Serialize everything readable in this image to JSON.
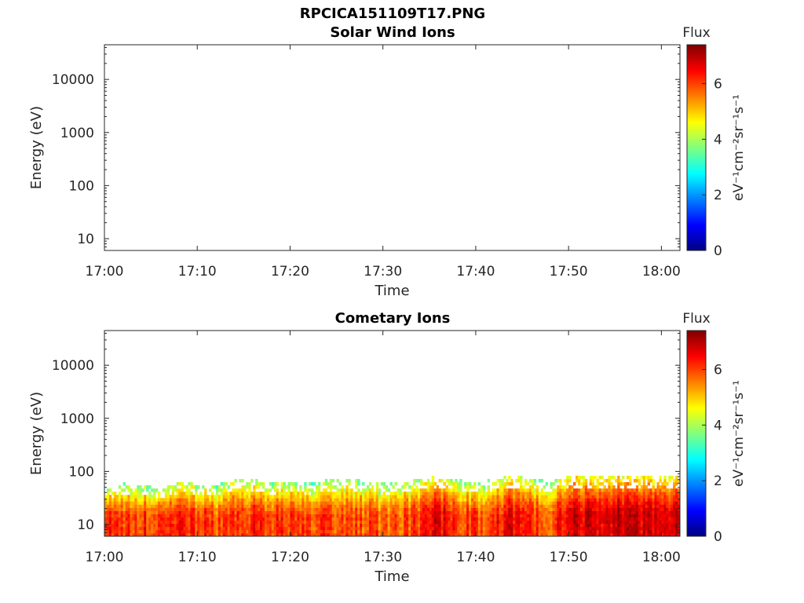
{
  "figure": {
    "title": "RPCICA151109T17.PNG"
  },
  "colorbar": {
    "label": "Flux",
    "unit_text": "eV⁻¹cm⁻²sr⁻¹s⁻¹",
    "ticks": [
      "0",
      "2",
      "4",
      "6"
    ],
    "range": [
      0,
      7.4
    ],
    "colormap": "jet"
  },
  "chart_data": [
    {
      "type": "heatmap",
      "title": "Solar Wind Ions",
      "xlabel": "Time",
      "ylabel": "Energy (eV)",
      "y_scale": "log",
      "y_ticks": [
        "10",
        "100",
        "1000",
        "10000"
      ],
      "x_ticks": [
        "17:00",
        "17:10",
        "17:20",
        "17:30",
        "17:40",
        "17:50",
        "18:00"
      ],
      "x_range": [
        "17:00",
        "18:02"
      ],
      "y_range": [
        6,
        45000
      ],
      "data_present": false
    },
    {
      "type": "heatmap",
      "title": "Cometary Ions",
      "xlabel": "Time",
      "ylabel": "Energy (eV)",
      "y_scale": "log",
      "y_ticks": [
        "10",
        "100",
        "1000",
        "10000"
      ],
      "x_ticks": [
        "17:00",
        "17:10",
        "17:20",
        "17:30",
        "17:40",
        "17:50",
        "18:00"
      ],
      "x_range": [
        "17:00",
        "18:02"
      ],
      "y_range": [
        6,
        45000
      ],
      "data_present": true,
      "energy_max_eV": 80,
      "flux_profile": {
        "minutes": [
          0,
          2,
          4,
          6,
          8,
          10,
          12,
          14,
          16,
          18,
          20,
          22,
          24,
          26,
          28,
          30,
          32,
          34,
          36,
          38,
          40,
          42,
          44,
          46,
          48,
          50,
          52,
          54,
          56,
          58,
          60,
          62
        ],
        "peak_flux": [
          6.6,
          6.0,
          6.2,
          6.0,
          6.3,
          6.1,
          5.9,
          6.0,
          6.3,
          6.0,
          6.1,
          5.9,
          6.0,
          6.0,
          5.9,
          5.8,
          5.9,
          6.0,
          6.7,
          6.1,
          5.9,
          6.2,
          6.6,
          6.2,
          5.9,
          6.8,
          6.7,
          6.8,
          6.9,
          6.7,
          6.6,
          6.9
        ],
        "cutoff_eV": [
          40,
          55,
          50,
          45,
          60,
          55,
          50,
          70,
          65,
          55,
          60,
          55,
          65,
          70,
          60,
          55,
          60,
          70,
          75,
          65,
          55,
          70,
          75,
          70,
          60,
          80,
          80,
          80,
          80,
          80,
          80,
          80
        ]
      }
    }
  ]
}
